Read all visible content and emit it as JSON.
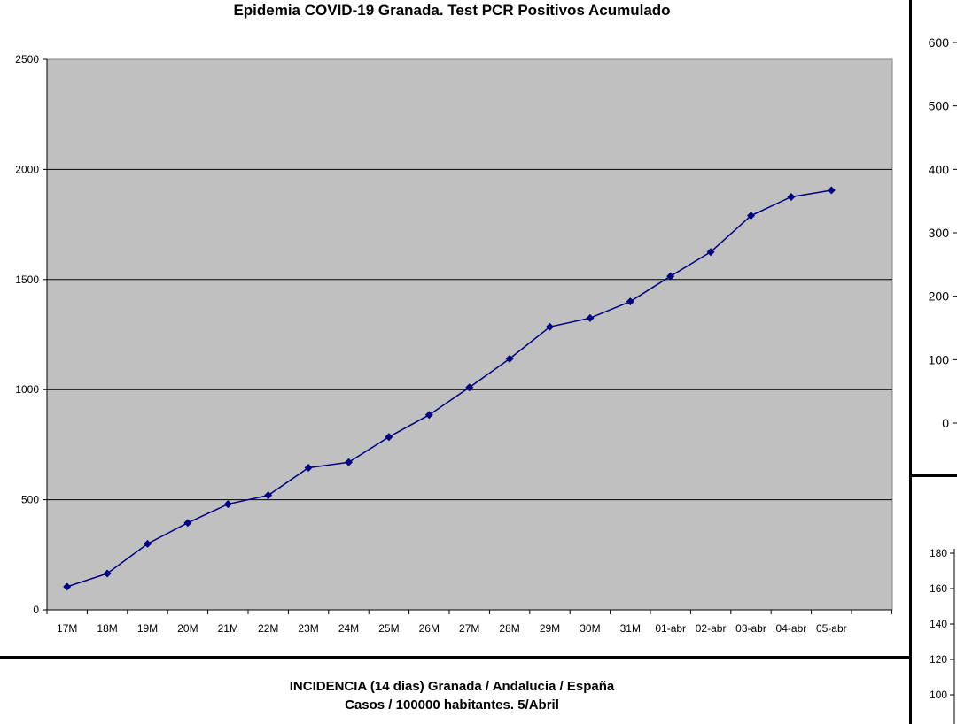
{
  "chart_data": [
    {
      "type": "line",
      "title": "Epidemia COVID-19 Granada. Test PCR Positivos Acumulado",
      "xlabel": "",
      "ylabel": "",
      "categories": [
        "17M",
        "18M",
        "19M",
        "20M",
        "21M",
        "22M",
        "23M",
        "24M",
        "25M",
        "26M",
        "27M",
        "28M",
        "29M",
        "30M",
        "31M",
        "01-abr",
        "02-abr",
        "03-abr",
        "04-abr",
        "05-abr"
      ],
      "series": [
        {
          "values": [
            105,
            165,
            300,
            395,
            480,
            520,
            645,
            670,
            785,
            885,
            1010,
            1140,
            1285,
            1325,
            1400,
            1515,
            1625,
            1790,
            1875,
            1905
          ]
        }
      ],
      "ylim": [
        0,
        2500
      ],
      "yticks": [
        "0",
        "500",
        "1000",
        "1500",
        "2000",
        "2500"
      ],
      "grid": true,
      "plot_background": "#c0c0c0",
      "line_color": "#000080",
      "legend": "none"
    },
    {
      "type": "line",
      "partial": "cropped at right edge",
      "yticks": [
        "0",
        "100",
        "200",
        "300",
        "400",
        "500",
        "600"
      ]
    },
    {
      "type": "line",
      "partial": "cropped at right edge",
      "title": "INCIDENCIA (14 dias) Granada / Andalucia / España",
      "subtitle": "Casos / 100000 habitantes. 5/Abril",
      "yticks": [
        "100",
        "120",
        "140",
        "160",
        "180"
      ]
    }
  ]
}
